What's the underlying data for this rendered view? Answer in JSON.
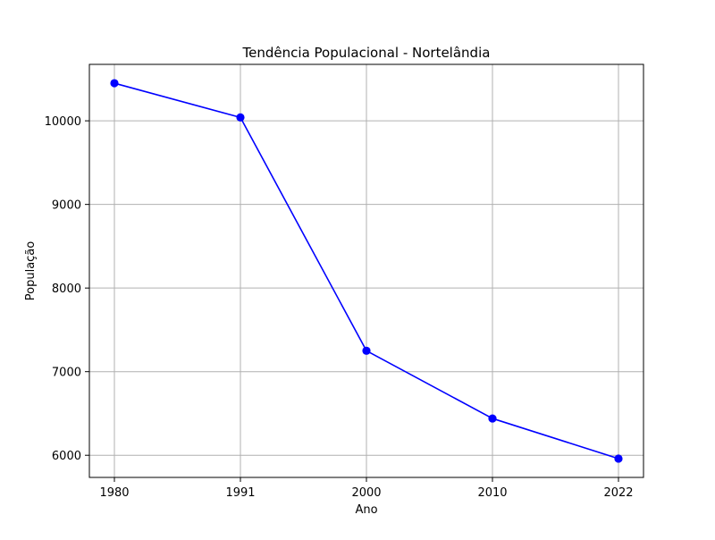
{
  "chart_data": {
    "type": "line",
    "title": "Tendência Populacional - Nortelândia",
    "xlabel": "Ano",
    "ylabel": "População",
    "categories": [
      "1980",
      "1991",
      "2000",
      "2010",
      "2022"
    ],
    "series": [
      {
        "values": [
          10450,
          10040,
          7250,
          6440,
          5960
        ],
        "color": "#0000ff",
        "marker": "circle"
      }
    ],
    "yticks": [
      6000,
      7000,
      8000,
      9000,
      10000
    ],
    "ylim": [
      5735,
      10675
    ],
    "grid": true
  }
}
